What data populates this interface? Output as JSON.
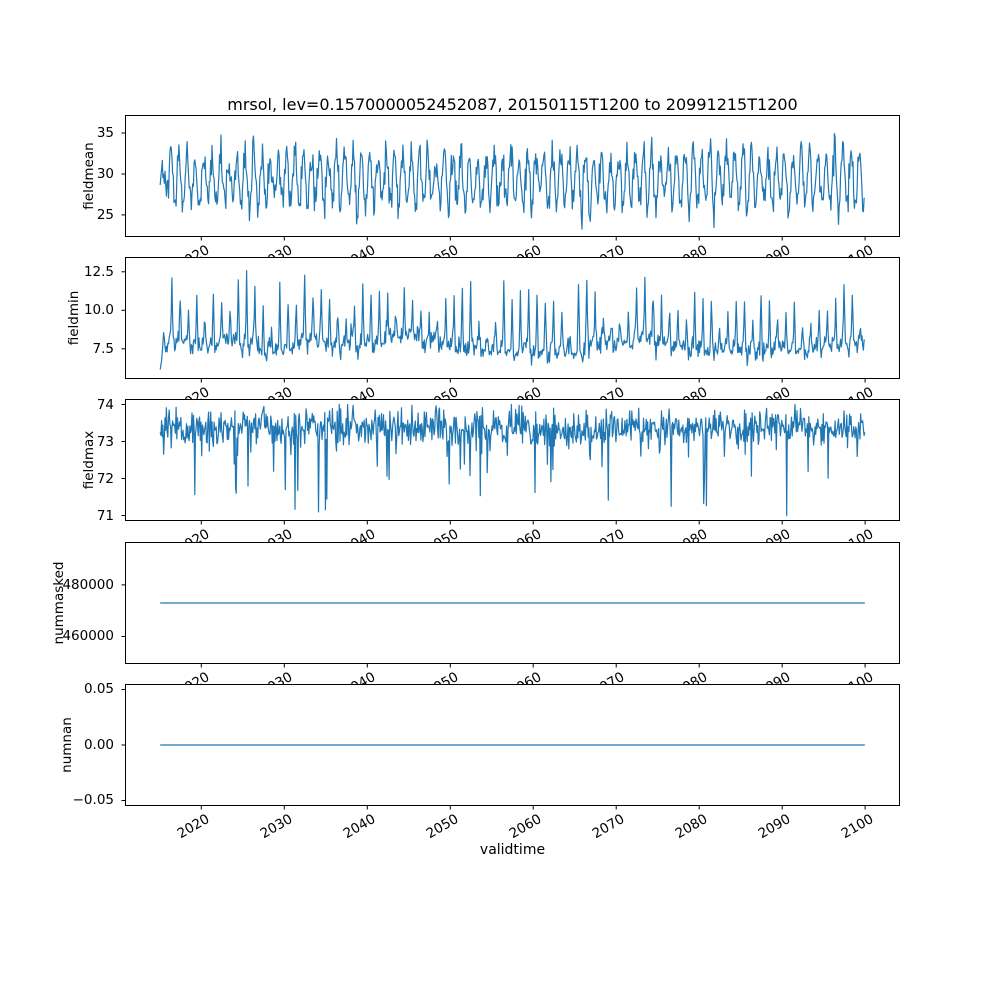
{
  "chart_data": {
    "type": "line",
    "title": "mrsol, lev=0.1570000052452087, 20150115T1200 to 20991215T1200",
    "xlabel": "validtime",
    "line_color": "#1f77b4",
    "x_start": 2015.04,
    "x_end": 2100.0,
    "points_per_year": 12,
    "xlim": [
      2010.8,
      2104.2
    ],
    "xticks": [
      {
        "v": 2020,
        "label": "2020"
      },
      {
        "v": 2030,
        "label": "2030"
      },
      {
        "v": 2040,
        "label": "2040"
      },
      {
        "v": 2050,
        "label": "2050"
      },
      {
        "v": 2060,
        "label": "2060"
      },
      {
        "v": 2070,
        "label": "2070"
      },
      {
        "v": 2080,
        "label": "2080"
      },
      {
        "v": 2090,
        "label": "2090"
      },
      {
        "v": 2100,
        "label": "2100"
      }
    ],
    "subplots": [
      {
        "ylabel": "fieldmean",
        "kind": "seasonal",
        "seed": 101,
        "base": 29.4,
        "amp_min": 2.0,
        "amp_var": 1.7,
        "noise": 1.05,
        "clamp": [
          23.2,
          36.4
        ],
        "ylim": [
          22.3,
          37.2
        ],
        "yticks": [
          {
            "v": 25,
            "label": "25"
          },
          {
            "v": 30,
            "label": "30"
          },
          {
            "v": 35,
            "label": "35"
          }
        ]
      },
      {
        "ylabel": "fieldmin",
        "kind": "spiky_up",
        "seed": 202,
        "base": 7.9,
        "noise": 0.3,
        "season_amp": 0.25,
        "spike_min": 0.8,
        "spike_var": 3.4,
        "clamp": [
          5.9,
          13.1
        ],
        "ylim": [
          5.54,
          13.46
        ],
        "yticks": [
          {
            "v": 7.5,
            "label": "7.5"
          },
          {
            "v": 10.0,
            "label": "10.0"
          },
          {
            "v": 12.5,
            "label": "12.5"
          }
        ]
      },
      {
        "ylabel": "fieldmax",
        "kind": "spiky_down",
        "seed": 303,
        "base": 73.35,
        "noise": 0.26,
        "spike_prob": 0.06,
        "spike_min": 0.3,
        "spike_var": 1.8,
        "clamp": [
          71.0,
          74.0
        ],
        "ylim": [
          70.85,
          74.15
        ],
        "yticks": [
          {
            "v": 71,
            "label": "71"
          },
          {
            "v": 72,
            "label": "72"
          },
          {
            "v": 73,
            "label": "73"
          },
          {
            "v": 74,
            "label": "74"
          }
        ]
      },
      {
        "ylabel": "nummasked",
        "kind": "constant",
        "value": 473000,
        "ylim": [
          449350,
          496650
        ],
        "yticks": [
          {
            "v": 460000,
            "label": "460000"
          },
          {
            "v": 480000,
            "label": "480000"
          }
        ]
      },
      {
        "ylabel": "numnan",
        "kind": "constant",
        "value": 0,
        "ylim": [
          -0.055,
          0.055
        ],
        "yticks": [
          {
            "v": -0.05,
            "label": "−0.05"
          },
          {
            "v": 0.0,
            "label": "0.00"
          },
          {
            "v": 0.05,
            "label": "0.05"
          }
        ]
      }
    ]
  }
}
